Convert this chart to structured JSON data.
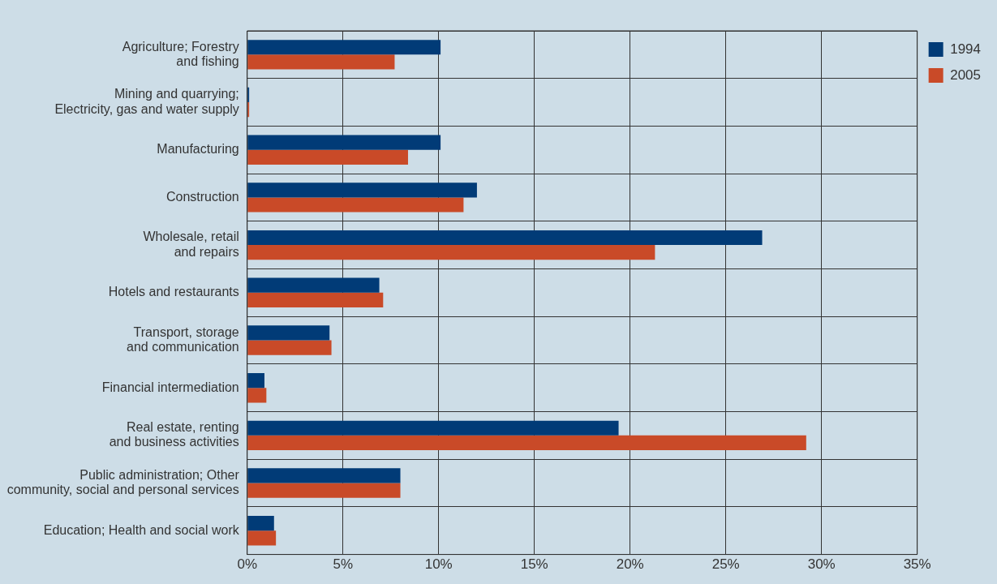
{
  "chart_data": {
    "type": "bar",
    "orientation": "horizontal",
    "categories": [
      "Agriculture; Forestry\nand fishing",
      "Mining and quarrying;\nElectricity, gas and water supply",
      "Manufacturing",
      "Construction",
      "Wholesale, retail\nand repairs",
      "Hotels and restaurants",
      "Transport, storage\nand communication",
      "Financial intermediation",
      "Real estate, renting\nand business activities",
      "Public administration; Other\ncommunity, social and personal services",
      "Education; Health and social work"
    ],
    "series": [
      {
        "name": "1994",
        "color": "#013b77",
        "values": [
          10.1,
          0.1,
          10.1,
          12.0,
          26.9,
          6.9,
          4.3,
          0.9,
          19.4,
          8.0,
          1.4
        ]
      },
      {
        "name": "2005",
        "color": "#c94a28",
        "values": [
          7.7,
          0.1,
          8.4,
          11.3,
          21.3,
          7.1,
          4.4,
          1.0,
          29.2,
          8.0,
          1.5
        ]
      }
    ],
    "xlim": [
      0,
      35
    ],
    "xticks": [
      {
        "value": 0,
        "label": "0%"
      },
      {
        "value": 5,
        "label": "5%"
      },
      {
        "value": 10,
        "label": "10%"
      },
      {
        "value": 15,
        "label": "15%"
      },
      {
        "value": 20,
        "label": "20%"
      },
      {
        "value": 25,
        "label": "25%"
      },
      {
        "value": 30,
        "label": "30%"
      },
      {
        "value": 35,
        "label": "35%"
      }
    ],
    "grid": true,
    "legend": "top right"
  }
}
